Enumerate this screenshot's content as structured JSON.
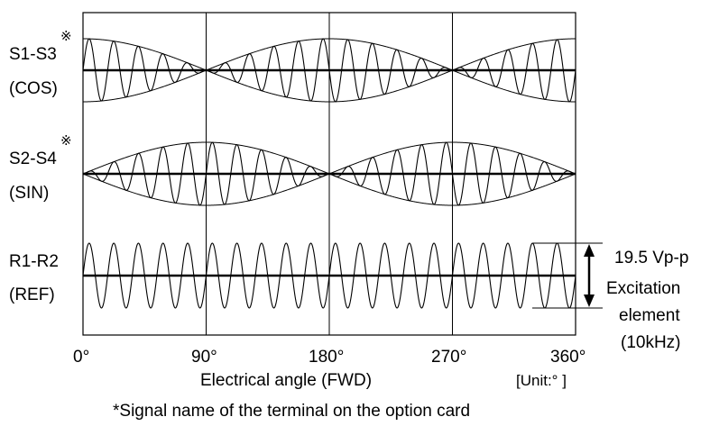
{
  "channels": [
    {
      "id": "cos",
      "label_line1": "S1-S3",
      "label_line2": "(COS)",
      "marker": "※",
      "envelope": "cos"
    },
    {
      "id": "sin",
      "label_line1": "S2-S4",
      "label_line2": "(SIN)",
      "marker": "※",
      "envelope": "sin"
    },
    {
      "id": "ref",
      "label_line1": "R1-R2",
      "label_line2": "(REF)",
      "marker": "",
      "envelope": "const"
    }
  ],
  "x_axis": {
    "tick_labels": [
      "0°",
      "90°",
      "180°",
      "270°",
      "360°"
    ],
    "label": "Electrical angle (FWD)",
    "unit": "[Unit:° ]"
  },
  "amplitude_annotation": {
    "value": "19.5 Vp-p",
    "line2": "Excitation",
    "line3": "element",
    "line4": "(10kHz)"
  },
  "footnote": "*Signal name of the terminal on the option card",
  "carrier_cycles": 20
}
